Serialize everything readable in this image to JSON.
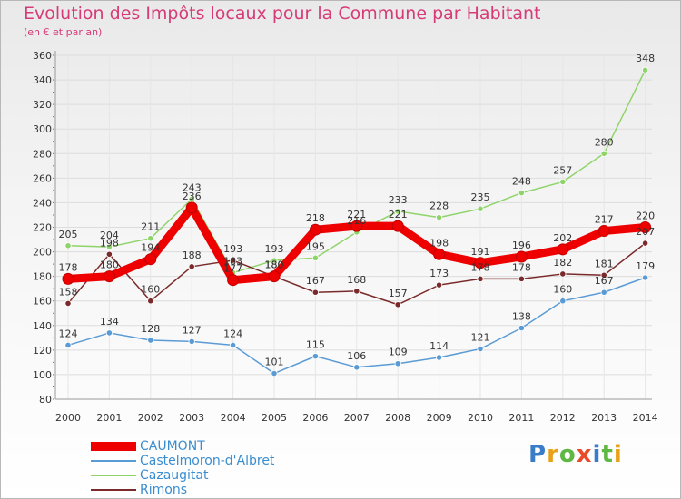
{
  "title": "Evolution des Impôts locaux pour la Commune par Habitant",
  "subtitle": "(en € et par an)",
  "logo": {
    "text": "Proxiti",
    "colors": [
      "#3a7cc7",
      "#e8a21a",
      "#5fb843",
      "#e84a2a",
      "#3a7cc7",
      "#5fb843",
      "#e8a21a"
    ]
  },
  "chart_data": {
    "type": "line",
    "x": [
      "2000",
      "2001",
      "2002",
      "2003",
      "2004",
      "2005",
      "2006",
      "2007",
      "2008",
      "2009",
      "2010",
      "2011",
      "2012",
      "2013",
      "2014"
    ],
    "ylim": [
      80,
      360
    ],
    "yticks": [
      "80",
      "100",
      "120",
      "140",
      "160",
      "180",
      "200",
      "220",
      "240",
      "260",
      "280",
      "300",
      "320",
      "340",
      "360"
    ],
    "grid": true,
    "legend_position": "bottom-left",
    "series": [
      {
        "name": "CAUMONT",
        "color": "#ee0000",
        "values": [
          178,
          180,
          194,
          236,
          177,
          180,
          218,
          221,
          221,
          198,
          191,
          196,
          202,
          217,
          220
        ],
        "labels": [
          "178",
          "180",
          "194",
          "236",
          "177",
          "180",
          "218",
          "221",
          "221",
          "198",
          "191",
          "196",
          "202",
          "217",
          "220"
        ]
      },
      {
        "name": "Castelmoron-d'Albret",
        "color": "#5b9bd5",
        "values": [
          124,
          134,
          128,
          127,
          124,
          101,
          115,
          106,
          109,
          114,
          121,
          138,
          160,
          167,
          179
        ],
        "labels": [
          "124",
          "134",
          "128",
          "127",
          "124",
          "101",
          "115",
          "106",
          "109",
          "114",
          "121",
          "138",
          "160",
          "167",
          "179"
        ]
      },
      {
        "name": "Cazaugitat",
        "color": "#8fd46a",
        "values": [
          205,
          204,
          211,
          243,
          183,
          193,
          195,
          216,
          233,
          228,
          235,
          248,
          257,
          280,
          348
        ],
        "labels": [
          "205",
          "204",
          "211",
          "243",
          "183",
          "193",
          "195",
          "216",
          "233",
          "228",
          "235",
          "248",
          "257",
          "280",
          "348"
        ]
      },
      {
        "name": "Rimons",
        "color": "#7a2a2a",
        "values": [
          158,
          198,
          160,
          188,
          193,
          180,
          167,
          168,
          157,
          173,
          178,
          178,
          182,
          181,
          207
        ],
        "labels": [
          "158",
          "198",
          "160",
          "188",
          "193",
          "180",
          "167",
          "168",
          "157",
          "173",
          "178",
          "178",
          "182",
          "181",
          "207"
        ]
      }
    ]
  }
}
